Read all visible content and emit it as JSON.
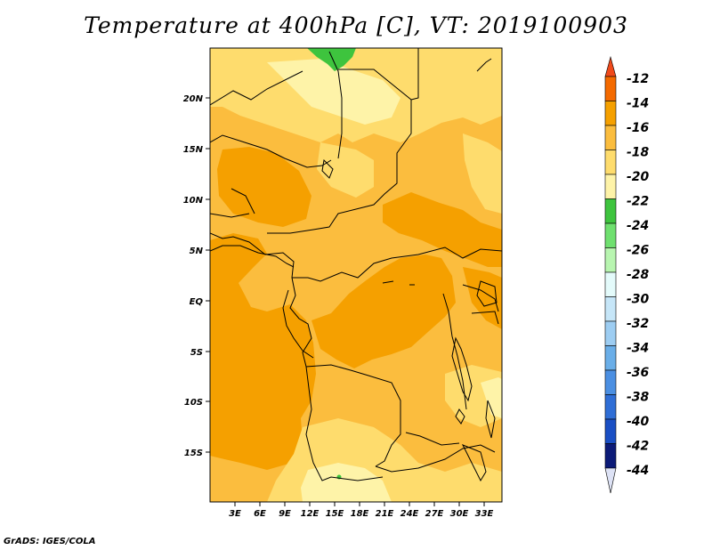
{
  "title": "Temperature at 400hPa [C], VT: 2019100903",
  "credit": "GrADS: IGES/COLA",
  "map": {
    "lat_labels": [
      "20N",
      "15N",
      "10N",
      "5N",
      "EQ",
      "5S",
      "10S",
      "15S"
    ],
    "lon_labels": [
      "3E",
      "6E",
      "9E",
      "12E",
      "15E",
      "18E",
      "21E",
      "24E",
      "27E",
      "30E",
      "33E"
    ]
  },
  "colorbar": {
    "labels": [
      "-12",
      "-14",
      "-16",
      "-18",
      "-20",
      "-22",
      "-24",
      "-26",
      "-28",
      "-30",
      "-32",
      "-34",
      "-36",
      "-38",
      "-40",
      "-42",
      "-44"
    ],
    "colors": {
      "above_-12": "#f04a1b",
      "-14_-12": "#f46a00",
      "-16_-14": "#f5a000",
      "-18_-16": "#fbbd3e",
      "-20_-18": "#fedc6d",
      "-22_-20": "#fef3a8",
      "-24_-22": "#3ec43e",
      "-26_-24": "#6fe06f",
      "-28_-26": "#b8f5b0",
      "-30_-28": "#e4fbfb",
      "-32_-30": "#c6e6f8",
      "-34_-32": "#9dcdf2",
      "-36_-34": "#6aaee8",
      "-38_-36": "#4b8fe2",
      "-40_-38": "#2f6ed6",
      "-42_-40": "#1a4fc4",
      "-44_-42": "#0c1b78",
      "below_-44": "#dde2f5"
    }
  }
}
